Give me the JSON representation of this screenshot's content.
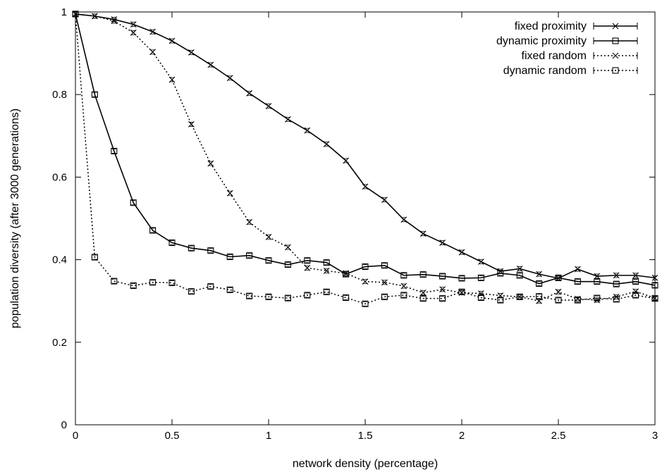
{
  "chart_data": {
    "type": "line",
    "title": "",
    "xlabel": "network density (percentage)",
    "ylabel": "population diversity (after 3000 generations)",
    "xlim": [
      0,
      3
    ],
    "ylim": [
      0,
      1
    ],
    "xticks": [
      0,
      0.5,
      1,
      1.5,
      2,
      2.5,
      3
    ],
    "xtick_labels": [
      "0",
      "0.5",
      "1",
      "1.5",
      "2",
      "2.5",
      "3"
    ],
    "yticks": [
      0,
      0.2,
      0.4,
      0.6,
      0.8,
      1
    ],
    "ytick_labels": [
      "0",
      "0.2",
      "0.4",
      "0.6",
      "0.8",
      "1"
    ],
    "grid": false,
    "legend_position": "top-right",
    "x": [
      0,
      0.1,
      0.2,
      0.3,
      0.4,
      0.5,
      0.6,
      0.7,
      0.8,
      0.9,
      1.0,
      1.1,
      1.2,
      1.3,
      1.4,
      1.5,
      1.6,
      1.7,
      1.8,
      1.9,
      2.0,
      2.1,
      2.2,
      2.3,
      2.4,
      2.5,
      2.6,
      2.7,
      2.8,
      2.9,
      3.0
    ],
    "series": [
      {
        "name": "fixed proximity",
        "marker": "x",
        "style": "solid",
        "values": [
          0.995,
          0.99,
          0.982,
          0.97,
          0.952,
          0.93,
          0.902,
          0.872,
          0.84,
          0.803,
          0.772,
          0.74,
          0.713,
          0.68,
          0.64,
          0.577,
          0.545,
          0.497,
          0.463,
          0.441,
          0.418,
          0.395,
          0.372,
          0.378,
          0.365,
          0.355,
          0.377,
          0.36,
          0.362,
          0.362,
          0.356
        ]
      },
      {
        "name": "dynamic proximity",
        "marker": "square",
        "style": "solid",
        "values": [
          0.995,
          0.8,
          0.663,
          0.538,
          0.471,
          0.441,
          0.428,
          0.422,
          0.407,
          0.41,
          0.398,
          0.388,
          0.398,
          0.393,
          0.365,
          0.383,
          0.386,
          0.362,
          0.364,
          0.36,
          0.355,
          0.356,
          0.367,
          0.362,
          0.342,
          0.356,
          0.347,
          0.347,
          0.341,
          0.347,
          0.338
        ]
      },
      {
        "name": "fixed random",
        "marker": "x",
        "style": "dotted",
        "values": [
          0.995,
          0.99,
          0.978,
          0.95,
          0.903,
          0.836,
          0.728,
          0.633,
          0.561,
          0.491,
          0.455,
          0.43,
          0.38,
          0.373,
          0.367,
          0.347,
          0.345,
          0.336,
          0.32,
          0.328,
          0.32,
          0.318,
          0.313,
          0.31,
          0.3,
          0.322,
          0.305,
          0.302,
          0.31,
          0.323,
          0.307
        ]
      },
      {
        "name": "dynamic random",
        "marker": "square",
        "style": "dotted",
        "values": [
          0.995,
          0.406,
          0.348,
          0.337,
          0.345,
          0.344,
          0.323,
          0.335,
          0.327,
          0.312,
          0.31,
          0.307,
          0.314,
          0.322,
          0.308,
          0.293,
          0.31,
          0.314,
          0.306,
          0.306,
          0.322,
          0.308,
          0.302,
          0.31,
          0.311,
          0.302,
          0.302,
          0.307,
          0.304,
          0.314,
          0.306
        ]
      }
    ],
    "colors": {
      "line": "#000000",
      "background": "#ffffff"
    }
  }
}
